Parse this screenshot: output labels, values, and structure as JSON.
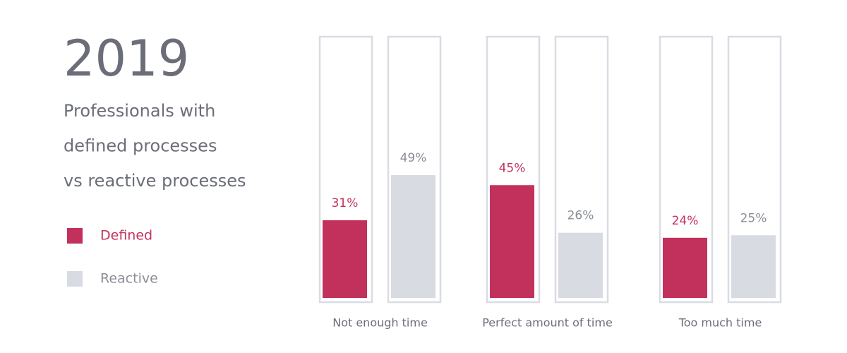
{
  "chart_data": {
    "type": "bar",
    "title": "2019",
    "subtitle": [
      "Professionals with",
      "defined processes",
      "vs reactive processes"
    ],
    "categories": [
      "Not enough time",
      "Perfect amount of time",
      "Too much time"
    ],
    "series": [
      {
        "name": "Defined",
        "color": "#c2315c",
        "values": [
          31,
          45,
          24
        ],
        "value_labels": [
          "31%",
          "45%",
          "24%"
        ]
      },
      {
        "name": "Reactive",
        "color": "#d9dbe3",
        "values": [
          49,
          26,
          25
        ],
        "value_labels": [
          "49%",
          "26%",
          "25%"
        ]
      }
    ]
  }
}
